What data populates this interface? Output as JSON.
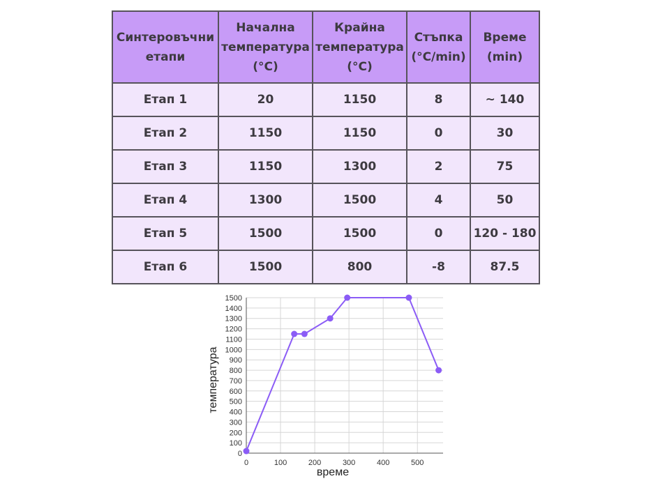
{
  "table": {
    "headers": [
      "Синтеровъчни етапи",
      "Начална температура (°C)",
      "Крайна температура (°C)",
      "Стъпка (°C/min)",
      "Време (min)"
    ],
    "rows": [
      [
        "Етап 1",
        "20",
        "1150",
        "8",
        "~ 140"
      ],
      [
        "Етап 2",
        "1150",
        "1150",
        "0",
        "30"
      ],
      [
        "Етап 3",
        "1150",
        "1300",
        "2",
        "75"
      ],
      [
        "Етап 4",
        "1300",
        "1500",
        "4",
        "50"
      ],
      [
        "Етап 5",
        "1500",
        "1500",
        "0",
        "120 - 180"
      ],
      [
        "Етап 6",
        "1500",
        "800",
        "-8",
        "87.5"
      ]
    ]
  },
  "chart_data": {
    "type": "line",
    "title": "",
    "xlabel": "време",
    "ylabel": "температура",
    "xlim": [
      0,
      575
    ],
    "ylim": [
      0,
      1500
    ],
    "xticks": [
      0,
      100,
      200,
      300,
      400,
      500
    ],
    "yticks": [
      0,
      100,
      200,
      300,
      400,
      500,
      600,
      700,
      800,
      900,
      1000,
      1100,
      1200,
      1300,
      1400,
      1500
    ],
    "grid": true,
    "series": [
      {
        "name": "температура",
        "color": "#8b5cf6",
        "x": [
          0,
          140,
          170,
          245,
          295,
          475,
          562
        ],
        "y": [
          20,
          1150,
          1150,
          1300,
          1500,
          1500,
          800
        ]
      }
    ]
  }
}
